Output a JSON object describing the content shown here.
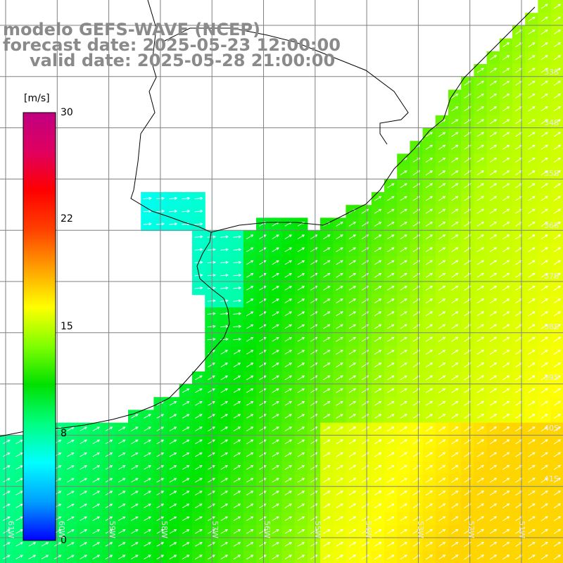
{
  "title": {
    "model": "modelo GEFS-WAVE (NCEP)",
    "forecast_date": "forecast date: 2025-05-23 12:00:00",
    "valid_date": "valid date: 2025-05-28 21:00:00"
  },
  "colorbar": {
    "unit": "[m/s]",
    "ticks": [
      "30",
      "22",
      "15",
      "8",
      "0"
    ],
    "colors": [
      "#0000ff",
      "#00a0ff",
      "#00ffff",
      "#00ff80",
      "#00e000",
      "#80ff00",
      "#ffff00",
      "#ffa000",
      "#ff4000",
      "#ff0000",
      "#e00060",
      "#c00080"
    ]
  },
  "lat_labels": [
    "33S",
    "34S",
    "35S",
    "36S",
    "37S",
    "38S",
    "39S",
    "40S",
    "41S"
  ],
  "lon_labels": [
    "61W",
    "60W",
    "59W",
    "58W",
    "57W",
    "56W",
    "55W",
    "54W",
    "53W",
    "52W",
    "51W"
  ],
  "colors": {
    "land": "#ffffff",
    "grid": "#808080",
    "coast": "#000000",
    "arrow": "#ffffff"
  }
}
